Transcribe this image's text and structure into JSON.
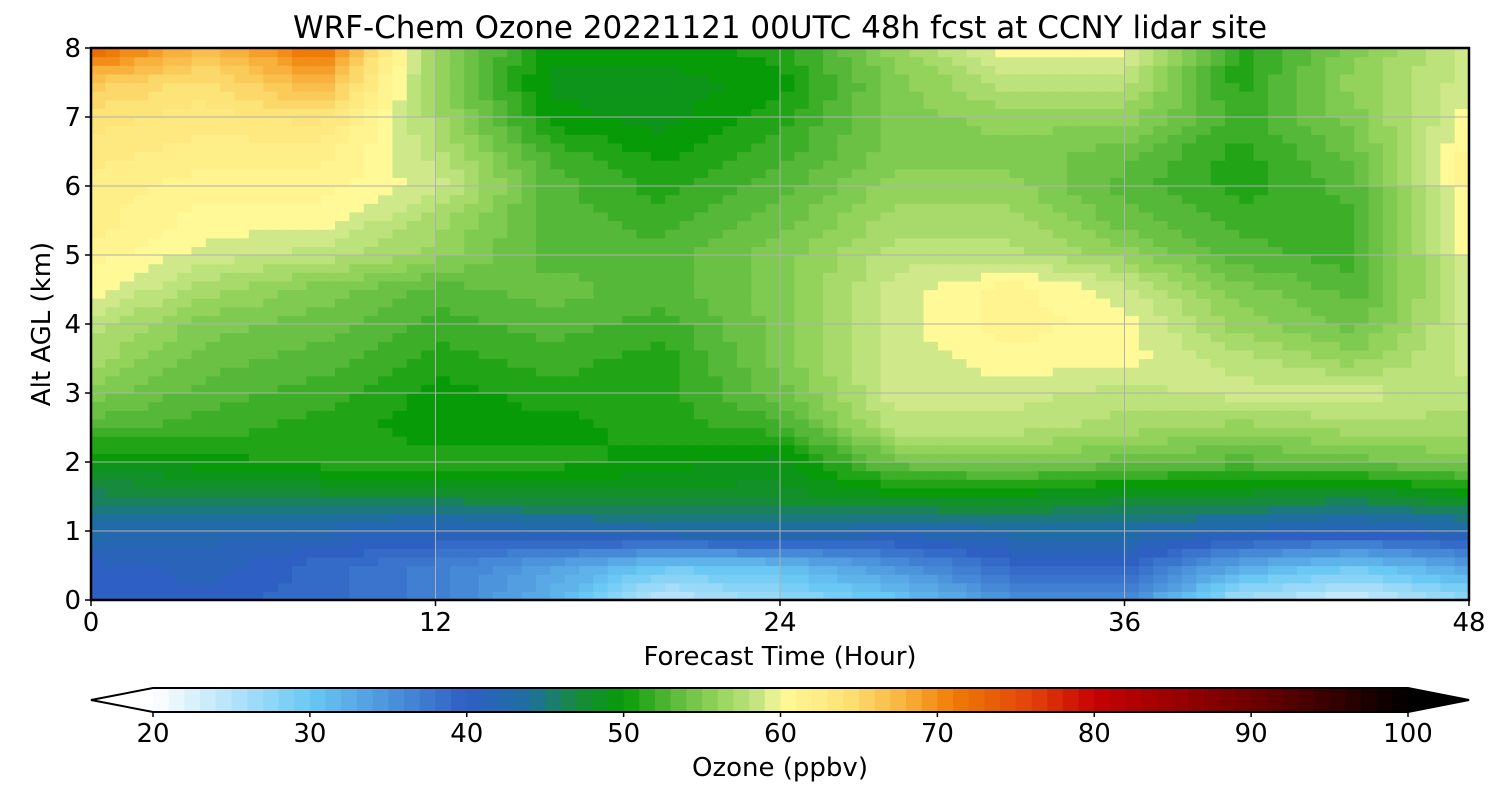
{
  "chart_data": {
    "type": "heatmap",
    "title": "WRF-Chem Ozone  20221121 00UTC 48h fcst at CCNY lidar site",
    "xlabel": "Forecast Time (Hour)",
    "ylabel": "Alt AGL (km)",
    "xlim": [
      0,
      48
    ],
    "ylim": [
      0,
      8
    ],
    "xticks": [
      "0",
      "12",
      "24",
      "36",
      "48"
    ],
    "yticks": [
      "0",
      "1",
      "2",
      "3",
      "4",
      "5",
      "6",
      "7",
      "8"
    ],
    "grid": true,
    "x": [
      0,
      4,
      8,
      12,
      16,
      20,
      24,
      28,
      32,
      36,
      40,
      44,
      48
    ],
    "y": [
      0,
      0.5,
      1,
      1.5,
      2,
      2.5,
      3,
      3.5,
      4,
      4.5,
      5,
      5.5,
      6,
      6.5,
      7,
      7.5,
      8
    ],
    "z": [
      [
        40,
        40,
        39,
        37,
        32,
        24,
        27,
        30,
        35,
        36,
        26,
        23,
        27
      ],
      [
        40,
        41,
        39,
        37,
        34,
        30,
        31,
        35,
        39,
        40,
        33,
        30,
        34
      ],
      [
        43,
        42,
        42,
        41,
        42,
        43,
        44,
        42,
        43,
        43,
        42,
        41,
        42
      ],
      [
        46,
        47,
        47,
        47,
        48,
        48,
        48,
        49,
        49,
        48,
        48,
        47,
        49
      ],
      [
        49,
        50,
        51,
        51,
        51,
        50,
        49,
        54,
        55,
        54,
        53,
        54,
        55
      ],
      [
        53,
        52,
        51,
        50,
        50,
        51,
        52,
        58,
        58,
        57,
        56,
        57,
        57
      ],
      [
        55,
        53,
        52,
        50,
        51,
        51,
        54,
        59,
        59,
        58,
        59,
        59,
        58
      ],
      [
        57,
        54,
        53,
        51,
        52,
        51,
        55,
        59,
        60,
        60,
        58,
        56,
        59
      ],
      [
        58,
        55,
        54,
        52,
        53,
        52,
        55,
        59,
        61,
        60,
        56,
        54,
        59
      ],
      [
        60,
        57,
        55,
        53,
        54,
        53,
        55,
        59,
        61,
        59,
        55,
        53,
        59
      ],
      [
        61,
        59,
        58,
        56,
        53,
        53,
        55,
        58,
        58,
        56,
        53,
        52,
        60
      ],
      [
        62,
        60,
        60,
        57,
        53,
        52,
        54,
        57,
        57,
        54,
        52,
        52,
        60
      ],
      [
        62,
        61,
        61,
        59,
        53,
        51,
        53,
        56,
        56,
        53,
        51,
        53,
        61
      ],
      [
        63,
        62,
        62,
        58,
        52,
        50,
        52,
        55,
        55,
        54,
        51,
        54,
        61
      ],
      [
        64,
        63,
        64,
        57,
        50,
        49,
        51,
        55,
        56,
        56,
        52,
        55,
        60
      ],
      [
        66,
        64,
        68,
        56,
        49,
        49,
        50,
        55,
        58,
        58,
        51,
        56,
        59
      ],
      [
        73,
        67,
        72,
        56,
        50,
        50,
        51,
        56,
        60,
        60,
        51,
        55,
        59
      ]
    ]
  },
  "colorbar": {
    "label": "Ozone  (ppbv)",
    "ticks": [
      "20",
      "30",
      "40",
      "50",
      "60",
      "70",
      "80",
      "90",
      "100"
    ],
    "min": 20,
    "max": 100,
    "extend": "both",
    "colors": [
      [
        20,
        "#ffffff"
      ],
      [
        30,
        "#6ac8f4"
      ],
      [
        40,
        "#2e5fc3"
      ],
      [
        44,
        "#1e6fa0"
      ],
      [
        47,
        "#178a3c"
      ],
      [
        50,
        "#079b07"
      ],
      [
        53,
        "#56b838"
      ],
      [
        56,
        "#93d35c"
      ],
      [
        59,
        "#cfe98a"
      ],
      [
        60,
        "#fff998"
      ],
      [
        64,
        "#fde478"
      ],
      [
        68,
        "#f8b13c"
      ],
      [
        71,
        "#ef7c06"
      ],
      [
        76,
        "#e2420a"
      ],
      [
        80,
        "#c60202"
      ],
      [
        90,
        "#6f0000"
      ],
      [
        100,
        "#000000"
      ]
    ]
  }
}
